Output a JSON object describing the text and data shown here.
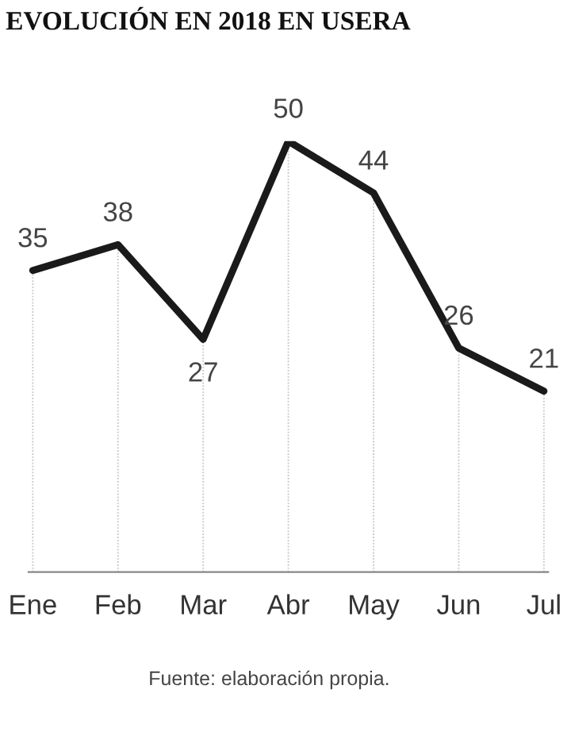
{
  "chart_data": {
    "type": "line",
    "title": "EVOLUCIÓN EN 2018 EN USERA",
    "categories": [
      "Ene",
      "Feb",
      "Mar",
      "Abr",
      "May",
      "Jun",
      "Jul"
    ],
    "values": [
      35,
      38,
      27,
      50,
      44,
      26,
      21
    ],
    "color": "#1a1a1a",
    "grid": "x",
    "data_labels": true,
    "tick_labels": "x",
    "annotations": [
      "Fuente: elaboración propia."
    ]
  }
}
